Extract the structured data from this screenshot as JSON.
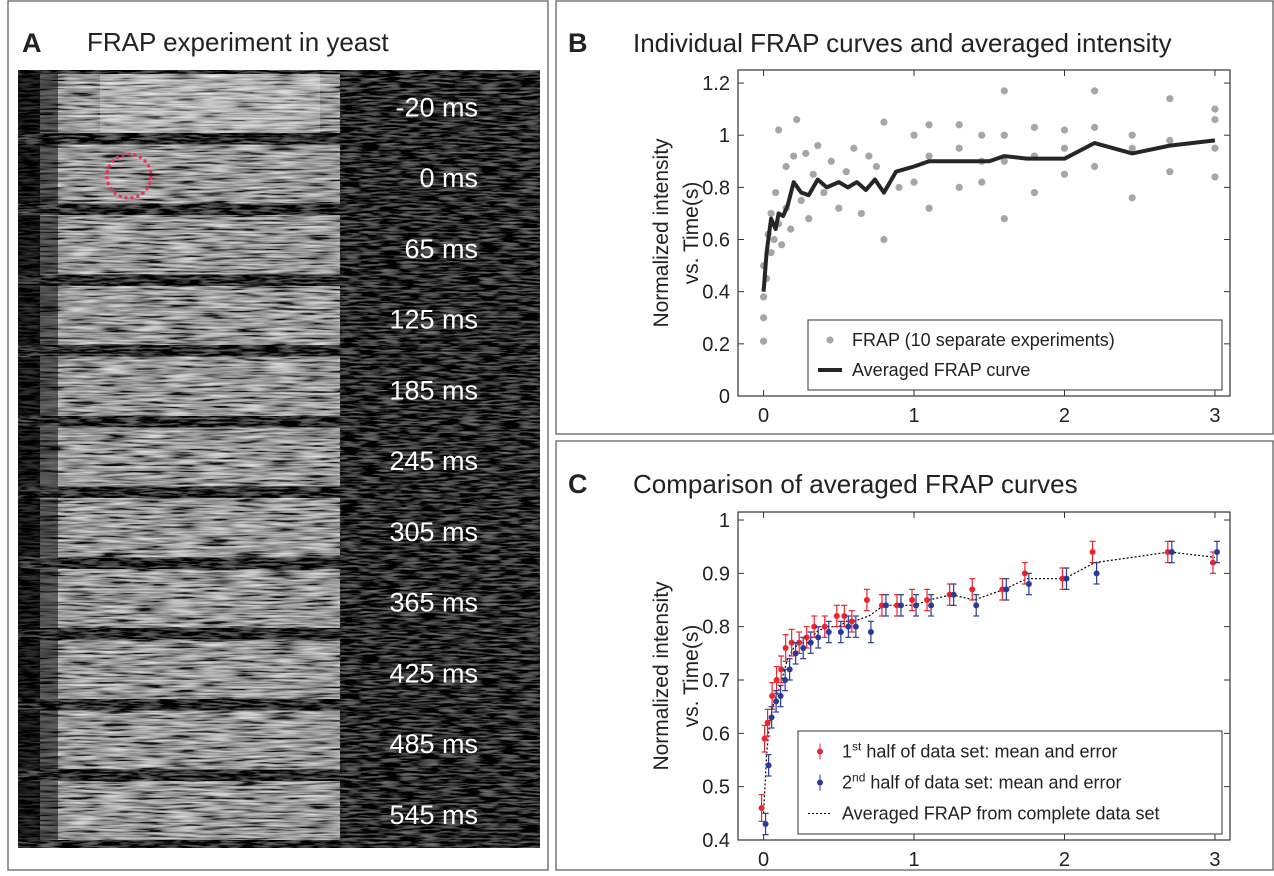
{
  "panel_a": {
    "letter": "A",
    "title": "FRAP experiment in yeast",
    "frames": [
      "-20 ms",
      "0 ms",
      "65 ms",
      "125 ms",
      "185 ms",
      "245 ms",
      "305 ms",
      "365 ms",
      "425 ms",
      "485 ms",
      "545 ms"
    ]
  },
  "chart_data": [
    {
      "type": "scatter",
      "letter": "B",
      "title": "Individual FRAP curves and averaged intensity",
      "y_label": [
        "Normalized intensity",
        "vs. Time(s)"
      ],
      "xlim": [
        -0.17,
        3.1
      ],
      "xticks": [
        0,
        1,
        2,
        3
      ],
      "ylim": [
        0,
        1.25
      ],
      "yticks": [
        0,
        0.2,
        0.4,
        0.6,
        0.8,
        1,
        1.2
      ],
      "legend": "lower right",
      "series": [
        {
          "name": "FRAP (10 separate experiments)",
          "color": "#a6a6a6",
          "kind": "scatter",
          "x": [
            0,
            0,
            0,
            0,
            0.02,
            0.03,
            0.05,
            0.05,
            0.07,
            0.08,
            0.1,
            0.1,
            0.12,
            0.15,
            0.15,
            0.18,
            0.2,
            0.22,
            0.25,
            0.28,
            0.3,
            0.33,
            0.36,
            0.4,
            0.45,
            0.5,
            0.55,
            0.6,
            0.65,
            0.7,
            0.75,
            0.8,
            0.8,
            0.9,
            1.0,
            1.0,
            1.1,
            1.1,
            1.1,
            1.3,
            1.3,
            1.3,
            1.45,
            1.45,
            1.45,
            1.6,
            1.6,
            1.6,
            1.6,
            1.8,
            1.8,
            1.8,
            2.0,
            2.0,
            2.0,
            2.2,
            2.2,
            2.2,
            2.45,
            2.45,
            2.45,
            2.7,
            2.7,
            2.7,
            3.0,
            3.0,
            3.0,
            3.0
          ],
          "values": [
            0.21,
            0.3,
            0.38,
            0.5,
            0.45,
            0.62,
            0.55,
            0.7,
            0.6,
            0.78,
            0.66,
            1.02,
            0.58,
            0.72,
            0.88,
            0.64,
            0.92,
            1.06,
            0.75,
            0.93,
            0.68,
            0.85,
            0.96,
            0.78,
            0.9,
            0.72,
            0.86,
            0.95,
            0.7,
            0.92,
            0.88,
            0.6,
            1.05,
            0.8,
            0.82,
            1.0,
            0.72,
            0.92,
            1.04,
            0.8,
            0.95,
            1.04,
            0.82,
            0.9,
            1.0,
            0.68,
            0.9,
            1.0,
            1.17,
            0.78,
            0.92,
            1.03,
            0.85,
            0.95,
            1.02,
            0.88,
            1.03,
            1.17,
            0.76,
            0.95,
            1.0,
            0.86,
            0.98,
            1.14,
            0.84,
            0.95,
            1.06,
            1.1
          ]
        },
        {
          "name": "Averaged FRAP curve",
          "color": "#262626",
          "kind": "line",
          "x": [
            0,
            0.02,
            0.05,
            0.08,
            0.1,
            0.13,
            0.16,
            0.2,
            0.25,
            0.3,
            0.36,
            0.42,
            0.5,
            0.56,
            0.62,
            0.68,
            0.74,
            0.8,
            0.88,
            1.0,
            1.1,
            1.3,
            1.5,
            1.6,
            1.75,
            2.0,
            2.2,
            2.45,
            2.7,
            3.0
          ],
          "values": [
            0.4,
            0.55,
            0.68,
            0.64,
            0.7,
            0.69,
            0.73,
            0.82,
            0.78,
            0.77,
            0.83,
            0.8,
            0.82,
            0.8,
            0.82,
            0.79,
            0.83,
            0.78,
            0.86,
            0.88,
            0.9,
            0.9,
            0.9,
            0.92,
            0.91,
            0.91,
            0.97,
            0.93,
            0.96,
            0.98
          ]
        }
      ]
    },
    {
      "type": "errorbar",
      "letter": "C",
      "title": "Comparison of averaged FRAP curves",
      "y_label": [
        "Normalized intensity",
        "vs. Time(s)"
      ],
      "xlim": [
        -0.17,
        3.1
      ],
      "xticks": [
        0,
        1,
        2,
        3
      ],
      "ylim": [
        0.4,
        1.015
      ],
      "yticks": [
        0.4,
        0.5,
        0.6,
        0.7,
        0.8,
        0.9,
        1
      ],
      "legend": "lower right",
      "series": [
        {
          "name": [
            "1",
            "st",
            " half of data set: mean and error"
          ],
          "color": "#e8262c",
          "kind": "errorbar",
          "x": [
            0,
            0.02,
            0.04,
            0.07,
            0.1,
            0.13,
            0.16,
            0.2,
            0.25,
            0.3,
            0.35,
            0.42,
            0.5,
            0.55,
            0.6,
            0.7,
            0.8,
            0.9,
            1.0,
            1.1,
            1.25,
            1.4,
            1.6,
            1.75,
            2.0,
            2.2,
            2.7,
            3.0
          ],
          "values": [
            0.46,
            0.59,
            0.62,
            0.67,
            0.7,
            0.72,
            0.76,
            0.77,
            0.77,
            0.78,
            0.8,
            0.8,
            0.82,
            0.82,
            0.81,
            0.85,
            0.84,
            0.84,
            0.85,
            0.85,
            0.86,
            0.87,
            0.87,
            0.9,
            0.89,
            0.94,
            0.94,
            0.92
          ],
          "errors": [
            0.025,
            0.025,
            0.025,
            0.025,
            0.025,
            0.025,
            0.025,
            0.025,
            0.02,
            0.02,
            0.02,
            0.02,
            0.02,
            0.02,
            0.02,
            0.02,
            0.02,
            0.02,
            0.02,
            0.02,
            0.02,
            0.02,
            0.02,
            0.02,
            0.02,
            0.02,
            0.02,
            0.02
          ]
        },
        {
          "name": [
            "2",
            "nd",
            " half of data set: mean and error"
          ],
          "color": "#2b3a98",
          "kind": "errorbar",
          "x": [
            0,
            0.02,
            0.04,
            0.07,
            0.1,
            0.13,
            0.16,
            0.2,
            0.25,
            0.3,
            0.35,
            0.42,
            0.5,
            0.55,
            0.6,
            0.7,
            0.8,
            0.9,
            1.0,
            1.1,
            1.25,
            1.4,
            1.6,
            1.75,
            2.0,
            2.2,
            2.7,
            3.0
          ],
          "values": [
            0.43,
            0.54,
            0.63,
            0.66,
            0.67,
            0.7,
            0.72,
            0.75,
            0.76,
            0.77,
            0.78,
            0.79,
            0.79,
            0.8,
            0.8,
            0.79,
            0.84,
            0.84,
            0.84,
            0.84,
            0.86,
            0.84,
            0.87,
            0.88,
            0.89,
            0.9,
            0.94,
            0.94
          ],
          "errors": [
            0.02,
            0.02,
            0.02,
            0.02,
            0.02,
            0.02,
            0.02,
            0.02,
            0.02,
            0.02,
            0.02,
            0.02,
            0.02,
            0.02,
            0.02,
            0.02,
            0.02,
            0.02,
            0.02,
            0.02,
            0.02,
            0.02,
            0.02,
            0.02,
            0.02,
            0.02,
            0.02,
            0.02
          ]
        },
        {
          "name": [
            "Averaged FRAP from complete data set"
          ],
          "color": "#000000",
          "kind": "dotted",
          "x": [
            0,
            0.02,
            0.04,
            0.07,
            0.1,
            0.13,
            0.16,
            0.2,
            0.25,
            0.3,
            0.35,
            0.42,
            0.5,
            0.55,
            0.6,
            0.7,
            0.8,
            0.9,
            1.0,
            1.1,
            1.25,
            1.4,
            1.6,
            1.75,
            2.0,
            2.2,
            2.7,
            3.0
          ],
          "values": [
            0.45,
            0.56,
            0.62,
            0.66,
            0.68,
            0.71,
            0.74,
            0.76,
            0.77,
            0.77,
            0.79,
            0.8,
            0.8,
            0.81,
            0.81,
            0.82,
            0.84,
            0.84,
            0.84,
            0.85,
            0.86,
            0.85,
            0.87,
            0.89,
            0.89,
            0.92,
            0.94,
            0.93
          ]
        }
      ]
    }
  ]
}
